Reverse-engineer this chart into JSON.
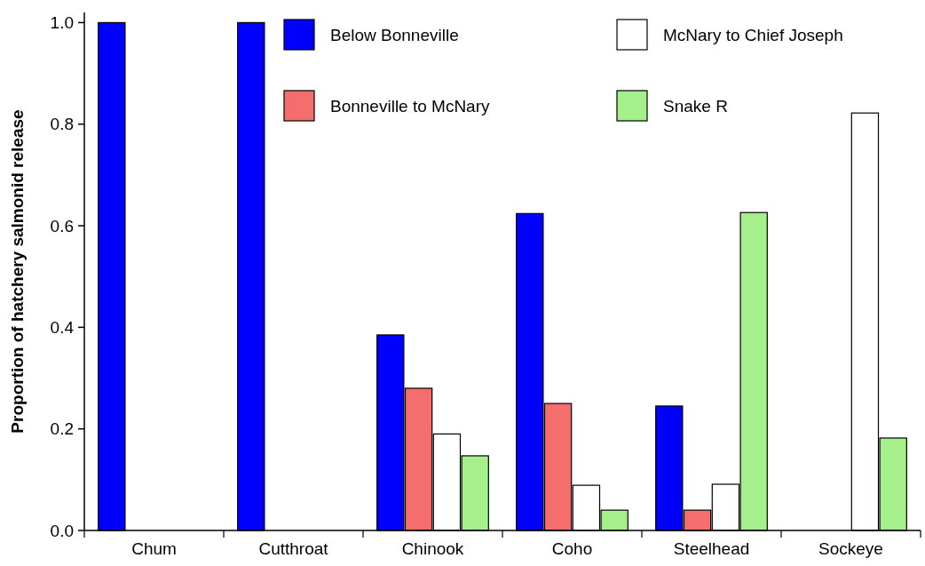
{
  "chart_data": {
    "type": "bar",
    "ylabel": "Proportion of hatchery salmonid release",
    "categories": [
      "Chum",
      "Cutthroat",
      "Chinook",
      "Coho",
      "Steelhead",
      "Sockeye"
    ],
    "series": [
      {
        "name": "Below Bonneville",
        "color": "#0000ff",
        "values": [
          1.0,
          1.0,
          0.385,
          0.624,
          0.245,
          0
        ]
      },
      {
        "name": "Bonneville to McNary",
        "color": "#f46e6e",
        "values": [
          0,
          0,
          0.28,
          0.25,
          0.04,
          0
        ]
      },
      {
        "name": "McNary to Chief Joseph",
        "color": "#ffffff",
        "values": [
          0,
          0,
          0.19,
          0.089,
          0.091,
          0.822
        ]
      },
      {
        "name": "Snake R",
        "color": "#a6f08c",
        "values": [
          0,
          0,
          0.147,
          0.04,
          0.626,
          0.182
        ]
      }
    ],
    "ylim": [
      0,
      1.02
    ],
    "yticks": [
      {
        "value": 0,
        "label": "0.0"
      },
      {
        "value": 0.2,
        "label": "0.2"
      },
      {
        "value": 0.4,
        "label": "0.4"
      },
      {
        "value": 0.6,
        "label": "0.6"
      },
      {
        "value": 0.8,
        "label": "0.8"
      },
      {
        "value": 1.0,
        "label": "1.0"
      }
    ],
    "legend": "top right"
  }
}
